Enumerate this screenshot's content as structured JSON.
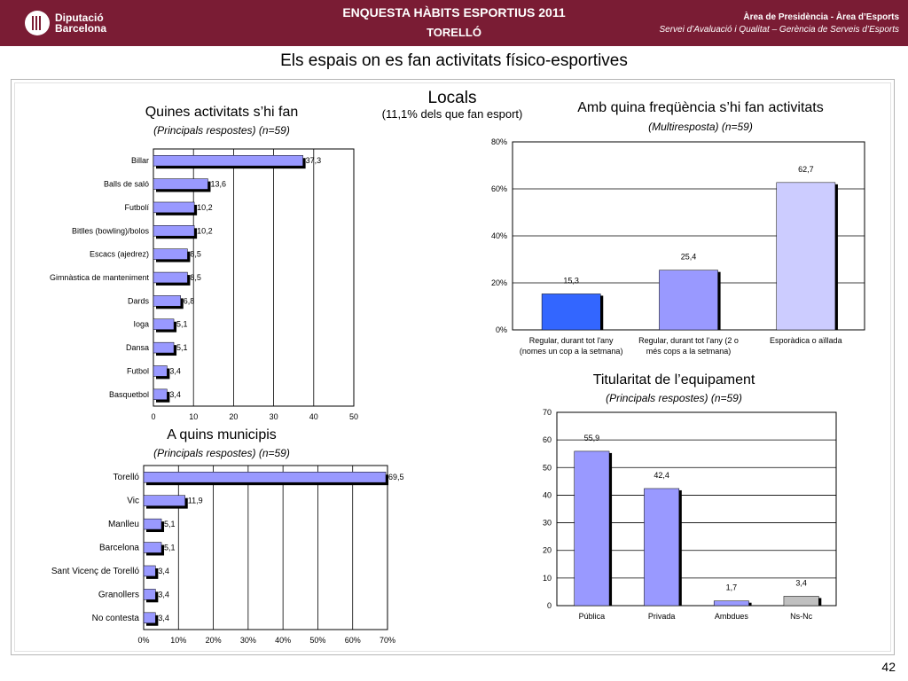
{
  "header": {
    "logo_line1": "Diputació",
    "logo_line2": "Barcelona",
    "title": "ENQUESTA HÀBITS ESPORTIUS 2011",
    "subtitle": "TORELLÓ",
    "right_line1": "Àrea de Presidència   -   Àrea d’Esports",
    "right_line2": "Servei d’Avaluació i Qualitat – Gerència de Serveis d’Esports",
    "bg_color": "#7a1c34"
  },
  "page_title": "Els espais on es fan activitats físico-esportives",
  "locals": {
    "title": "Locals",
    "subtitle": "(11,1% dels que fan esport)"
  },
  "page_number": "42",
  "chart_data": [
    {
      "id": "activitats",
      "type": "bar",
      "orientation": "horizontal",
      "title": "Quines activitats s’hi fan",
      "subtitle": "(Principals respostes) (n=59)",
      "categories": [
        "Billar",
        "Balls de saló",
        "Futbolí",
        "Bitlles (bowling)/bolos",
        "Escacs (ajedrez)",
        "Gimnàstica de manteniment",
        "Dards",
        "Ioga",
        "Dansa",
        "Futbol",
        "Basquetbol"
      ],
      "values": [
        37.3,
        13.6,
        10.2,
        10.2,
        8.5,
        8.5,
        6.8,
        5.1,
        5.1,
        3.4,
        3.4
      ],
      "value_labels": [
        "37,3",
        "13,6",
        "10,2",
        "10,2",
        "8,5",
        "8,5",
        "6,8",
        "5,1",
        "5,1",
        "3,4",
        "3,4"
      ],
      "xlim": [
        0,
        50
      ],
      "ticks": [
        0,
        10,
        20,
        30,
        40,
        50
      ],
      "tick_labels": [
        "0",
        "10",
        "20",
        "30",
        "40",
        "50"
      ],
      "grid": true,
      "color": "#9999ff"
    },
    {
      "id": "frequencia",
      "type": "bar",
      "orientation": "vertical",
      "title": "Amb quina freqüència s’hi fan activitats",
      "subtitle": "(Multiresposta) (n=59)",
      "categories": [
        [
          "Regular, durant tot l'any",
          "(nomes un cop a la setmana)"
        ],
        [
          "Regular, durant tot l'any (2 o",
          "més cops a la setmana)"
        ],
        [
          "Esporàdica o aïllada"
        ]
      ],
      "values": [
        15.3,
        25.4,
        62.7
      ],
      "value_labels": [
        "15,3",
        "25,4",
        "62,7"
      ],
      "ylim": [
        0,
        80
      ],
      "ticks": [
        0,
        20,
        40,
        60,
        80
      ],
      "tick_labels": [
        "0%",
        "20%",
        "40%",
        "60%",
        "80%"
      ],
      "grid": true,
      "colors": [
        "#3366ff",
        "#9999ff",
        "#ccccff"
      ]
    },
    {
      "id": "municipis",
      "type": "bar",
      "orientation": "horizontal",
      "title": "A quins municipis",
      "subtitle": "(Principals respostes) (n=59)",
      "categories": [
        "Torelló",
        "Vic",
        "Manlleu",
        "Barcelona",
        "Sant Vicenç de Torelló",
        "Granollers",
        "No contesta"
      ],
      "values": [
        69.5,
        11.9,
        5.1,
        5.1,
        3.4,
        3.4,
        3.4
      ],
      "value_labels": [
        "69,5",
        "11,9",
        "5,1",
        "5,1",
        "3,4",
        "3,4",
        "3,4"
      ],
      "xlim": [
        0,
        70
      ],
      "ticks": [
        0,
        10,
        20,
        30,
        40,
        50,
        60,
        70
      ],
      "tick_labels": [
        "0%",
        "10%",
        "20%",
        "30%",
        "40%",
        "50%",
        "60%",
        "70%"
      ],
      "grid": true,
      "color": "#9999ff"
    },
    {
      "id": "titularitat",
      "type": "bar",
      "orientation": "vertical",
      "title": "Titularitat de l’equipament",
      "subtitle": "(Principals respostes) (n=59)",
      "categories": [
        [
          "Pública"
        ],
        [
          "Privada"
        ],
        [
          "Ambdues"
        ],
        [
          "Ns-Nc"
        ]
      ],
      "values": [
        55.9,
        42.4,
        1.7,
        3.4
      ],
      "value_labels": [
        "55,9",
        "42,4",
        "1,7",
        "3,4"
      ],
      "ylim": [
        0,
        70
      ],
      "ticks": [
        0,
        10,
        20,
        30,
        40,
        50,
        60,
        70
      ],
      "tick_labels": [
        "0",
        "10",
        "20",
        "30",
        "40",
        "50",
        "60",
        "70"
      ],
      "grid": true,
      "colors": [
        "#9999ff",
        "#9999ff",
        "#9999ff",
        "#c0c0c0"
      ]
    }
  ]
}
